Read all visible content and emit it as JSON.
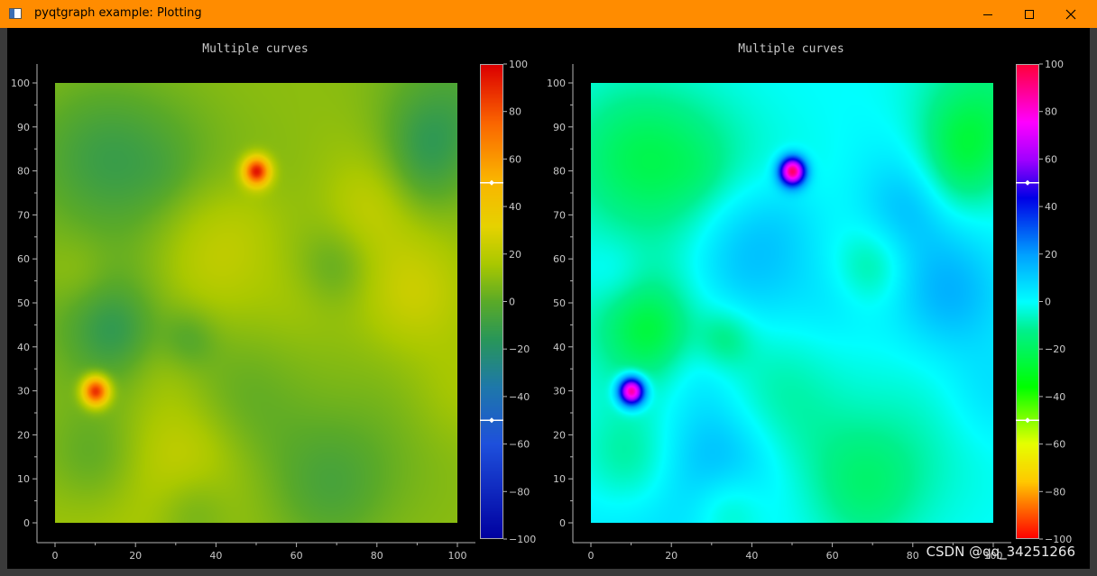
{
  "window": {
    "title": "pyqtgraph example: Plotting",
    "titlebar_color": "#ff8c00",
    "icon": "app-window-icon",
    "controls": [
      "minimize-icon",
      "maximize-icon",
      "close-icon"
    ]
  },
  "plots": [
    {
      "title": "Multiple curves",
      "colormap": "viridis-like (blue-teal-green-yellow-red)",
      "x_ticks": [
        "0",
        "20",
        "40",
        "60",
        "80",
        "100"
      ],
      "y_ticks": [
        "0",
        "10",
        "20",
        "30",
        "40",
        "50",
        "60",
        "70",
        "80",
        "90",
        "100"
      ],
      "colorbar_ticks": [
        "100",
        "80",
        "60",
        "40",
        "20",
        "0",
        "−20",
        "−40",
        "−60",
        "−80",
        "−100"
      ],
      "colorbar_handles": [
        50,
        -50
      ],
      "hotspots": [
        {
          "x": 50,
          "y": 80
        },
        {
          "x": 10,
          "y": 30
        }
      ]
    },
    {
      "title": "Multiple curves",
      "colormap": "spectrum (red-yellow-green-cyan-blue-magenta-red)",
      "x_ticks": [
        "0",
        "20",
        "40",
        "60",
        "80",
        "100"
      ],
      "y_ticks": [
        "0",
        "10",
        "20",
        "30",
        "40",
        "50",
        "60",
        "70",
        "80",
        "90",
        "100"
      ],
      "colorbar_ticks": [
        "100",
        "80",
        "60",
        "40",
        "20",
        "0",
        "−20",
        "−40",
        "−60",
        "−80",
        "−100"
      ],
      "colorbar_handles": [
        50,
        -50
      ],
      "hotspots": [
        {
          "x": 50,
          "y": 80
        },
        {
          "x": 10,
          "y": 30
        }
      ]
    }
  ],
  "watermark": "CSDN @qq_34251266"
}
